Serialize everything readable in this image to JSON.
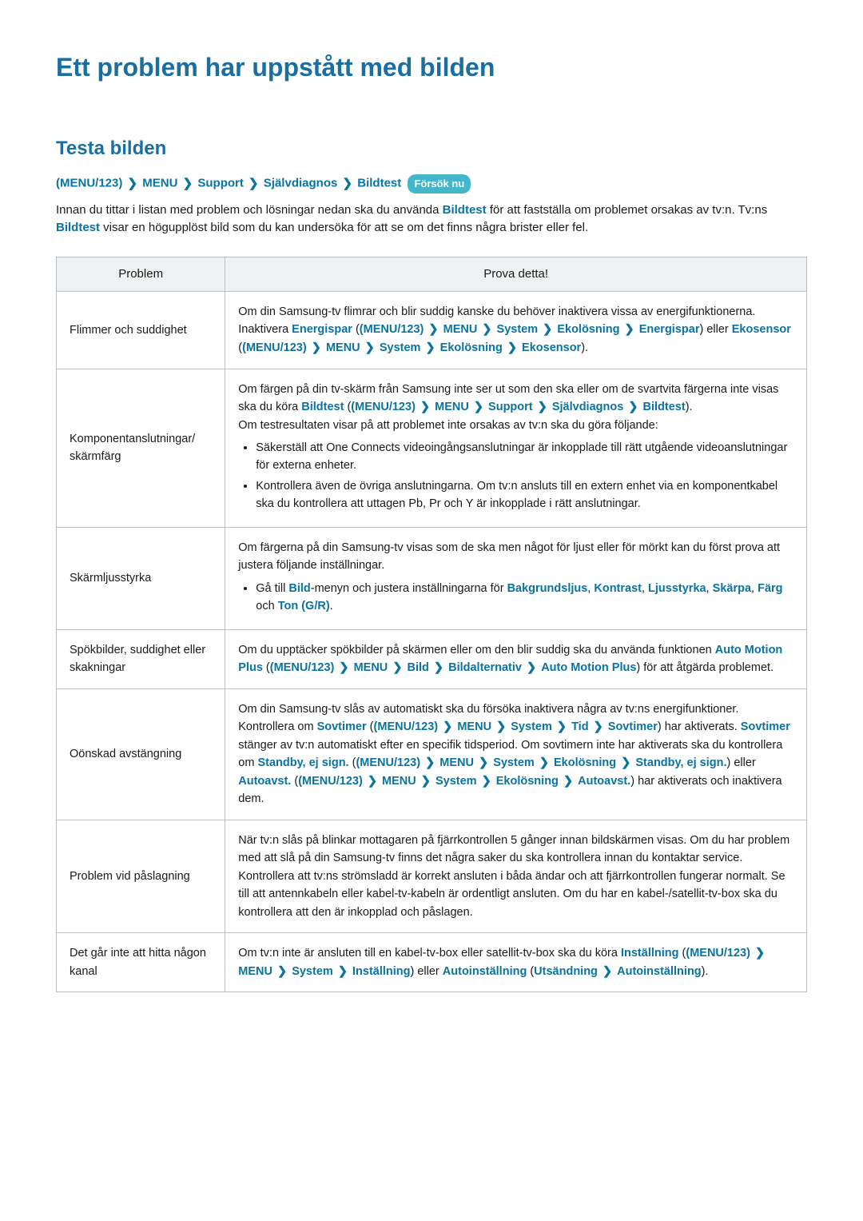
{
  "colors": {
    "accent": "#0a73a0",
    "accent_h1": "#1b6ea0",
    "badge_bg": "#44b6c9",
    "badge_fg": "#ffffff",
    "text": "#1a1a1a",
    "table_header_bg": "#eef0f1",
    "table_border": "#b9c0c6"
  },
  "h1": "Ett problem har uppstått med bilden",
  "h2": "Testa bilden",
  "menu_path": {
    "open": "(",
    "p1": "MENU/123",
    "close": ")",
    "p2": "MENU",
    "p3": "Support",
    "p4": "Självdiagnos",
    "p5": "Bildtest",
    "try_now": "Försök nu"
  },
  "chevron": "❯",
  "intro": {
    "t1": "Innan du tittar i listan med problem och lösningar nedan ska du använda ",
    "b1": "Bildtest",
    "t2": " för att fastställa om problemet orsakas av tv:n. Tv:ns ",
    "b2": "Bildtest",
    "t3": " visar en högupplöst bild som du kan undersöka för att se om det finns några brister eller fel."
  },
  "table": {
    "head_problem": "Problem",
    "head_try": "Prova detta!",
    "rows": {
      "r0": {
        "problem": "Flimmer och suddighet",
        "t1": "Om din Samsung-tv flimrar och blir suddig kanske du behöver inaktivera vissa av energifunktionerna. Inaktivera ",
        "b1": "Energispar",
        "t2": " (",
        "p_open": "(",
        "m1": "MENU/123",
        "p_close": ")",
        "m2": "MENU",
        "m3": "System",
        "m4": "Ekolösning",
        "m5": "Energispar",
        "t3": ") eller ",
        "b2": "Ekosensor",
        "t4": " (",
        "n1": "MENU/123",
        "n2": "MENU",
        "n3": "System",
        "n4": "Ekolösning",
        "n5": "Ekosensor",
        "t5": ")."
      },
      "r1": {
        "problem": "Komponentanslutningar/ skärmfärg",
        "t1": "Om färgen på din tv-skärm från Samsung inte ser ut som den ska eller om de svartvita färgerna inte visas ska du köra ",
        "b1": "Bildtest",
        "t2": " (",
        "m1": "MENU/123",
        "m2": "MENU",
        "m3": "Support",
        "m4": "Självdiagnos",
        "m5": "Bildtest",
        "t3": ").",
        "t4": "Om testresultaten visar på att problemet inte orsakas av tv:n ska du göra följande:",
        "li1": "Säkerställ att One Connects videoingångsanslutningar är inkopplade till rätt utgående videoanslutningar för externa enheter.",
        "li2": "Kontrollera även de övriga anslutningarna. Om tv:n ansluts till en extern enhet via en komponentkabel ska du kontrollera att uttagen Pb, Pr och Y är inkopplade i rätt anslutningar."
      },
      "r2": {
        "problem": "Skärmljusstyrka",
        "t1": "Om färgerna på din Samsung-tv visas som de ska men något för ljust eller för mörkt kan du först prova att justera följande inställningar.",
        "li_pre": "Gå till ",
        "li_b1": "Bild",
        "li_mid": "-menyn och justera inställningarna för ",
        "s1": "Bakgrundsljus",
        "sep": ", ",
        "s2": "Kontrast",
        "s3": "Ljusstyrka",
        "s4": "Skärpa",
        "s5": "Färg",
        "and": " och ",
        "s6": "Ton (G/R)",
        "end": "."
      },
      "r3": {
        "problem": "Spökbilder, suddighet eller skakningar",
        "t1": "Om du upptäcker spökbilder på skärmen eller om den blir suddig ska du använda funktionen ",
        "b1": "Auto Motion Plus",
        "t2": " (",
        "m1": "MENU/123",
        "m2": "MENU",
        "m3": "Bild",
        "m4": "Bildalternativ",
        "m5": "Auto Motion Plus",
        "t3": ") för att åtgärda problemet."
      },
      "r4": {
        "problem": "Oönskad avstängning",
        "t1": "Om din Samsung-tv slås av automatiskt ska du försöka inaktivera några av tv:ns energifunktioner. Kontrollera om ",
        "b1": "Sovtimer",
        "t2": " (",
        "m1": "MENU/123",
        "m2": "MENU",
        "m3": "System",
        "m4": "Tid",
        "m5": "Sovtimer",
        "t3": ") har aktiverats. ",
        "b2": "Sovtimer",
        "t4": " stänger av tv:n automatiskt efter en specifik tidsperiod. Om sovtimern inte har aktiverats ska du kontrollera om ",
        "b3": "Standby, ej sign.",
        "t5": " (",
        "n1": "MENU/123",
        "n2": "MENU",
        "n3": "System",
        "n4": "Ekolösning",
        "n5": "Standby, ej sign.",
        "t6": ") eller ",
        "b4": "Autoavst.",
        "t7": " (",
        "o1": "MENU/123",
        "o2": "MENU",
        "o3": "System",
        "o4": "Ekolösning",
        "o5": "Autoavst.",
        "t8": ") har aktiverats och inaktivera dem."
      },
      "r5": {
        "problem": "Problem vid påslagning",
        "t1": "När tv:n slås på blinkar mottagaren på fjärrkontrollen 5 gånger innan bildskärmen visas. Om du har problem med att slå på din Samsung-tv finns det några saker du ska kontrollera innan du kontaktar service. Kontrollera att tv:ns strömsladd är korrekt ansluten i båda ändar och att fjärrkontrollen fungerar normalt. Se till att antennkabeln eller kabel-tv-kabeln är ordentligt ansluten. Om du har en kabel-/satellit-tv-box ska du kontrollera att den är inkopplad och påslagen."
      },
      "r6": {
        "problem": "Det går inte att hitta någon kanal",
        "t1": "Om tv:n inte är ansluten till en kabel-tv-box eller satellit-tv-box ska du köra ",
        "b1": "Inställning",
        "t2": " (",
        "m1": "MENU/123",
        "m2": "MENU",
        "m3": "System",
        "m4": "Inställning",
        "t3": ") eller ",
        "b2": "Autoinställning",
        "t4": " (",
        "n1": "Utsändning",
        "n2": "Autoinställning",
        "t5": ")."
      }
    }
  }
}
